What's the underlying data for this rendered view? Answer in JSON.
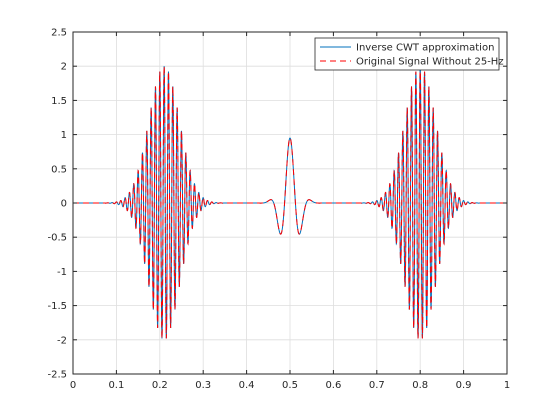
{
  "chart_data": {
    "type": "line",
    "xlim": [
      0,
      1
    ],
    "ylim": [
      -2.5,
      2.5
    ],
    "x_ticks": [
      0,
      0.1,
      0.2,
      0.3,
      0.4,
      0.5,
      0.6,
      0.7,
      0.8,
      0.9,
      1
    ],
    "x_tick_labels": [
      "0",
      "0.1",
      "0.2",
      "0.3",
      "0.4",
      "0.5",
      "0.6",
      "0.7",
      "0.8",
      "0.9",
      "1"
    ],
    "y_ticks": [
      -2.5,
      -2,
      -1.5,
      -1,
      -0.5,
      0,
      0.5,
      1,
      1.5,
      2,
      2.5
    ],
    "y_tick_labels": [
      "-2.5",
      "-2",
      "-1.5",
      "-1",
      "-0.5",
      "0",
      "0.5",
      "1",
      "1.5",
      "2",
      "2.5"
    ],
    "grid": true,
    "legend_position": "top-right",
    "title": "",
    "xlabel": "",
    "ylabel": "",
    "series": [
      {
        "name": "Inverse CWT approximation",
        "color": "#0072BD",
        "line_style": "solid",
        "components": [
          {
            "amplitude": 2.0,
            "center": 0.21,
            "width": 0.05,
            "frequency": 100
          },
          {
            "amplitude": 0.95,
            "center": 0.5,
            "width": 0.027,
            "frequency": 20
          },
          {
            "amplitude": 2.0,
            "center": 0.8,
            "width": 0.05,
            "frequency": 100
          }
        ]
      },
      {
        "name": "Original Signal Without 25-Hz",
        "color": "#FF0000",
        "line_style": "dashed",
        "components": [
          {
            "amplitude": 2.0,
            "center": 0.21,
            "width": 0.05,
            "frequency": 100
          },
          {
            "amplitude": 0.95,
            "center": 0.5,
            "width": 0.027,
            "frequency": 20
          },
          {
            "amplitude": 2.0,
            "center": 0.8,
            "width": 0.05,
            "frequency": 100
          }
        ]
      }
    ]
  }
}
